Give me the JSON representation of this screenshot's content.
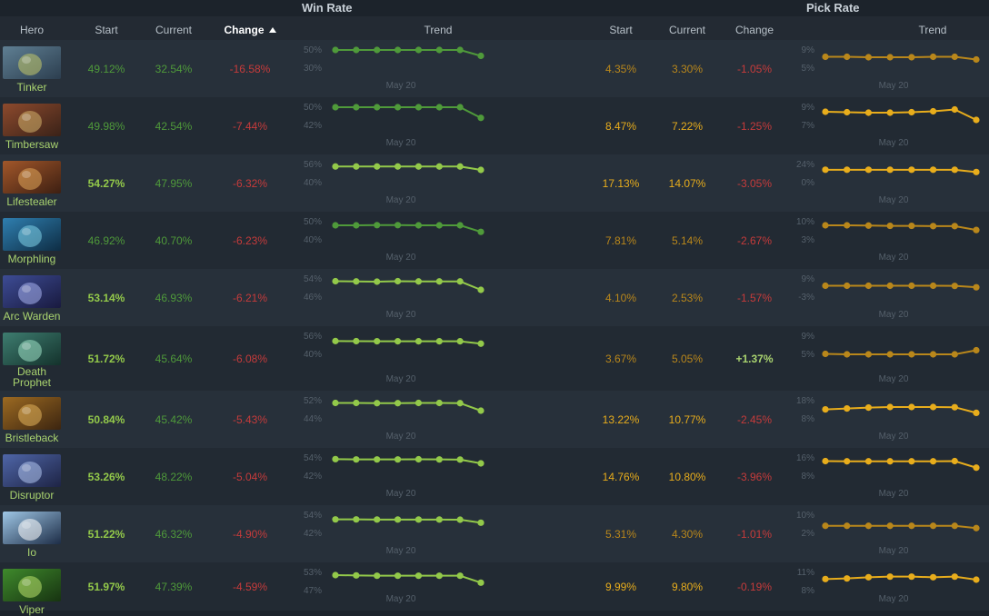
{
  "groups": {
    "win_rate": "Win Rate",
    "pick_rate": "Pick Rate"
  },
  "headers": {
    "hero": "Hero",
    "start": "Start",
    "current": "Current",
    "change": "Change",
    "trend": "Trend",
    "pr_start": "Start",
    "pr_current": "Current",
    "pr_change": "Change",
    "pr_trend": "Trend"
  },
  "sort": {
    "column": "Change",
    "direction": "ascending"
  },
  "colors": {
    "wr_dark": "#4f9a3a",
    "wr_light": "#93c94a",
    "pr_dark": "#b9871b",
    "pr_light": "#e8ad1c",
    "neg": "#c63b3b",
    "pos": "#a9d36f",
    "name": "#a9d36f"
  },
  "heroes": [
    {
      "name": "Tinker",
      "icon": "tinker-portrait",
      "wr_start": "49.12%",
      "wr_current": "32.54%",
      "wr_change": "-16.58%",
      "wr_trend": {
        "max_label": "50%",
        "min_label": "30%",
        "date": "May 20",
        "ymin": 30,
        "ymax": 50,
        "points": [
          50,
          50,
          50,
          50,
          50,
          50,
          50,
          43.5
        ]
      },
      "wr_tone": "dark",
      "pr_start": "4.35%",
      "pr_current": "3.30%",
      "pr_change": "-1.05%",
      "pr_trend": {
        "max_label": "9%",
        "min_label": "5%",
        "date": "May 20",
        "ymin": 5,
        "ymax": 9,
        "points": [
          7.5,
          7.5,
          7.4,
          7.4,
          7.4,
          7.5,
          7.5,
          6.9
        ]
      },
      "pr_tone": "dark"
    },
    {
      "name": "Timbersaw",
      "icon": "timbersaw-portrait",
      "wr_start": "49.98%",
      "wr_current": "42.54%",
      "wr_change": "-7.44%",
      "wr_trend": {
        "max_label": "50%",
        "min_label": "42%",
        "date": "May 20",
        "ymin": 42,
        "ymax": 50,
        "points": [
          50,
          50,
          50,
          50,
          50,
          50,
          50,
          45.3
        ]
      },
      "wr_tone": "dark",
      "pr_start": "8.47%",
      "pr_current": "7.22%",
      "pr_change": "-1.25%",
      "pr_trend": {
        "max_label": "9%",
        "min_label": "7%",
        "date": "May 20",
        "ymin": 7,
        "ymax": 9,
        "points": [
          8.5,
          8.45,
          8.4,
          8.4,
          8.45,
          8.55,
          8.75,
          7.6
        ]
      },
      "pr_tone": "light"
    },
    {
      "name": "Lifestealer",
      "icon": "lifestealer-portrait",
      "wr_start": "54.27%",
      "wr_current": "47.95%",
      "wr_change": "-6.32%",
      "wr_trend": {
        "max_label": "56%",
        "min_label": "40%",
        "date": "May 20",
        "ymin": 40,
        "ymax": 56,
        "points": [
          54.2,
          54.2,
          54.2,
          54.2,
          54.2,
          54.2,
          54.2,
          51.2
        ]
      },
      "wr_tone": "light",
      "pr_start": "17.13%",
      "pr_current": "14.07%",
      "pr_change": "-3.05%",
      "pr_trend": {
        "max_label": "24%",
        "min_label": "0%",
        "date": "May 20",
        "ymin": 0,
        "ymax": 24,
        "points": [
          17,
          17,
          17,
          17,
          17,
          17,
          17,
          14
        ]
      },
      "pr_tone": "light"
    },
    {
      "name": "Morphling",
      "icon": "morphling-portrait",
      "wr_start": "46.92%",
      "wr_current": "40.70%",
      "wr_change": "-6.23%",
      "wr_trend": {
        "max_label": "50%",
        "min_label": "40%",
        "date": "May 20",
        "ymin": 40,
        "ymax": 50,
        "points": [
          48,
          48,
          48.1,
          48.1,
          48,
          48,
          48,
          44.4
        ]
      },
      "wr_tone": "dark",
      "pr_start": "7.81%",
      "pr_current": "5.14%",
      "pr_change": "-2.67%",
      "pr_trend": {
        "max_label": "10%",
        "min_label": "3%",
        "date": "May 20",
        "ymin": 3,
        "ymax": 10,
        "points": [
          8.6,
          8.6,
          8.5,
          8.4,
          8.4,
          8.3,
          8.3,
          6.8
        ]
      },
      "pr_tone": "dark"
    },
    {
      "name": "Arc Warden",
      "icon": "arc-warden-portrait",
      "wr_start": "53.14%",
      "wr_current": "46.93%",
      "wr_change": "-6.21%",
      "wr_trend": {
        "max_label": "54%",
        "min_label": "46%",
        "date": "May 20",
        "ymin": 46,
        "ymax": 54,
        "points": [
          53.0,
          52.9,
          52.8,
          53.0,
          52.9,
          52.9,
          52.9,
          49.2
        ]
      },
      "wr_tone": "light",
      "pr_start": "4.10%",
      "pr_current": "2.53%",
      "pr_change": "-1.57%",
      "pr_trend": {
        "max_label": "9%",
        "min_label": "-3%",
        "date": "May 20",
        "ymin": -3,
        "ymax": 9,
        "points": [
          4.5,
          4.5,
          4.5,
          4.5,
          4.5,
          4.5,
          4.4,
          3.5
        ]
      },
      "pr_tone": "dark"
    },
    {
      "name": "Death Prophet",
      "icon": "death-prophet-portrait",
      "wr_start": "51.72%",
      "wr_current": "45.64%",
      "wr_change": "-6.08%",
      "wr_trend": {
        "max_label": "56%",
        "min_label": "40%",
        "date": "May 20",
        "ymin": 40,
        "ymax": 56,
        "points": [
          51.7,
          51.6,
          51.5,
          51.5,
          51.5,
          51.5,
          51.5,
          49.4
        ]
      },
      "wr_tone": "light",
      "pr_start": "3.67%",
      "pr_current": "5.05%",
      "pr_change": "+1.37%",
      "pr_trend": {
        "max_label": "9%",
        "min_label": "5%",
        "date": "May 20",
        "ymin": 5,
        "ymax": 9,
        "points": [
          5.1,
          5.0,
          5.0,
          5.0,
          5.0,
          5.0,
          5.0,
          5.9
        ]
      },
      "pr_tone": "dark"
    },
    {
      "name": "Bristleback",
      "icon": "bristleback-portrait",
      "wr_start": "50.84%",
      "wr_current": "45.42%",
      "wr_change": "-5.43%",
      "wr_trend": {
        "max_label": "52%",
        "min_label": "44%",
        "date": "May 20",
        "ymin": 44,
        "ymax": 52,
        "points": [
          51.0,
          51.0,
          50.9,
          50.9,
          51.0,
          51.0,
          50.9,
          47.6
        ]
      },
      "wr_tone": "light",
      "pr_start": "13.22%",
      "pr_current": "10.77%",
      "pr_change": "-2.45%",
      "pr_trend": {
        "max_label": "18%",
        "min_label": "8%",
        "date": "May 20",
        "ymin": 8,
        "ymax": 18,
        "points": [
          13.2,
          13.7,
          14.2,
          14.5,
          14.5,
          14.5,
          14.4,
          11.3
        ]
      },
      "pr_tone": "light"
    },
    {
      "name": "Disruptor",
      "icon": "disruptor-portrait",
      "wr_start": "53.26%",
      "wr_current": "48.22%",
      "wr_change": "-5.04%",
      "wr_trend": {
        "max_label": "54%",
        "min_label": "42%",
        "date": "May 20",
        "ymin": 42,
        "ymax": 54,
        "points": [
          53.2,
          53.0,
          53.0,
          53.0,
          53.1,
          53.0,
          52.9,
          50.4
        ]
      },
      "wr_tone": "light",
      "pr_start": "14.76%",
      "pr_current": "10.80%",
      "pr_change": "-3.96%",
      "pr_trend": {
        "max_label": "16%",
        "min_label": "8%",
        "date": "May 20",
        "ymin": 8,
        "ymax": 16,
        "points": [
          14.6,
          14.5,
          14.5,
          14.5,
          14.5,
          14.5,
          14.6,
          11.7
        ]
      },
      "pr_tone": "light"
    },
    {
      "name": "Io",
      "icon": "io-portrait",
      "wr_start": "51.22%",
      "wr_current": "46.32%",
      "wr_change": "-4.90%",
      "wr_trend": {
        "max_label": "54%",
        "min_label": "42%",
        "date": "May 20",
        "ymin": 42,
        "ymax": 54,
        "points": [
          51.2,
          51.2,
          51.1,
          51.1,
          51.1,
          51.1,
          51.0,
          49.0
        ]
      },
      "wr_tone": "light",
      "pr_start": "5.31%",
      "pr_current": "4.30%",
      "pr_change": "-1.01%",
      "pr_trend": {
        "max_label": "10%",
        "min_label": "2%",
        "date": "May 20",
        "ymin": 2,
        "ymax": 10,
        "points": [
          5.3,
          5.3,
          5.3,
          5.3,
          5.3,
          5.3,
          5.3,
          4.3
        ]
      },
      "pr_tone": "dark"
    },
    {
      "name": "Viper",
      "icon": "viper-portrait",
      "wr_start": "51.97%",
      "wr_current": "47.39%",
      "wr_change": "-4.59%",
      "wr_trend": {
        "max_label": "53%",
        "min_label": "47%",
        "date": "May 20",
        "ymin": 47,
        "ymax": 53,
        "points": [
          52.1,
          52.0,
          51.9,
          51.9,
          51.9,
          51.9,
          51.9,
          49.6
        ]
      },
      "wr_tone": "light",
      "pr_start": "9.99%",
      "pr_current": "9.80%",
      "pr_change": "-0.19%",
      "pr_trend": {
        "max_label": "11%",
        "min_label": "8%",
        "date": "May 20",
        "ymin": 8,
        "ymax": 11,
        "points": [
          9.9,
          10.0,
          10.2,
          10.3,
          10.3,
          10.2,
          10.3,
          9.8
        ]
      },
      "pr_tone": "light"
    }
  ]
}
